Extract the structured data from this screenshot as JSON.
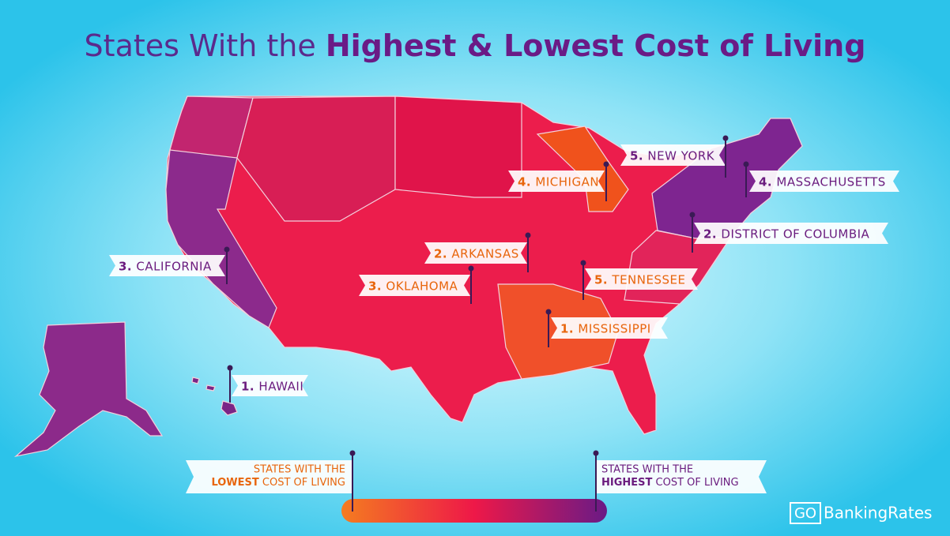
{
  "header": {
    "title_plain": "States With the",
    "title_bold": "Highest & Lowest Cost of Living"
  },
  "labels": [
    {
      "rank": "5.",
      "name": "NEW YORK",
      "color": "#6a1b7e"
    },
    {
      "rank": "4.",
      "name": "MICHIGAN",
      "color": "#e8650c"
    },
    {
      "rank": "4.",
      "name": "MASSACHUSETTS",
      "color": "#6a1b7e"
    },
    {
      "rank": "2.",
      "name": "DISTRICT OF COLUMBIA",
      "color": "#6a1b7e"
    },
    {
      "rank": "2.",
      "name": "ARKANSAS",
      "color": "#e8650c"
    },
    {
      "rank": "3.",
      "name": "CALIFORNIA",
      "color": "#6a1b7e"
    },
    {
      "rank": "3.",
      "name": "OKLAHOMA",
      "color": "#e8650c"
    },
    {
      "rank": "5.",
      "name": "TENNESSEE",
      "color": "#e8650c"
    },
    {
      "rank": "1.",
      "name": "MISSISSIPPI",
      "color": "#e8650c"
    },
    {
      "rank": "1.",
      "name": "HAWAII",
      "color": "#6a1b7e"
    }
  ],
  "legend": {
    "low": {
      "line1": "STATES WITH THE",
      "emphasis": "LOWEST",
      "rest": "COST OF LIVING",
      "color": "#e8650c"
    },
    "high": {
      "line1": "STATES WITH THE",
      "emphasis": "HIGHEST",
      "rest": "COST OF LIVING",
      "color": "#6a1b7e"
    }
  },
  "logo": {
    "mark": "GO",
    "name": "BankingRates"
  }
}
